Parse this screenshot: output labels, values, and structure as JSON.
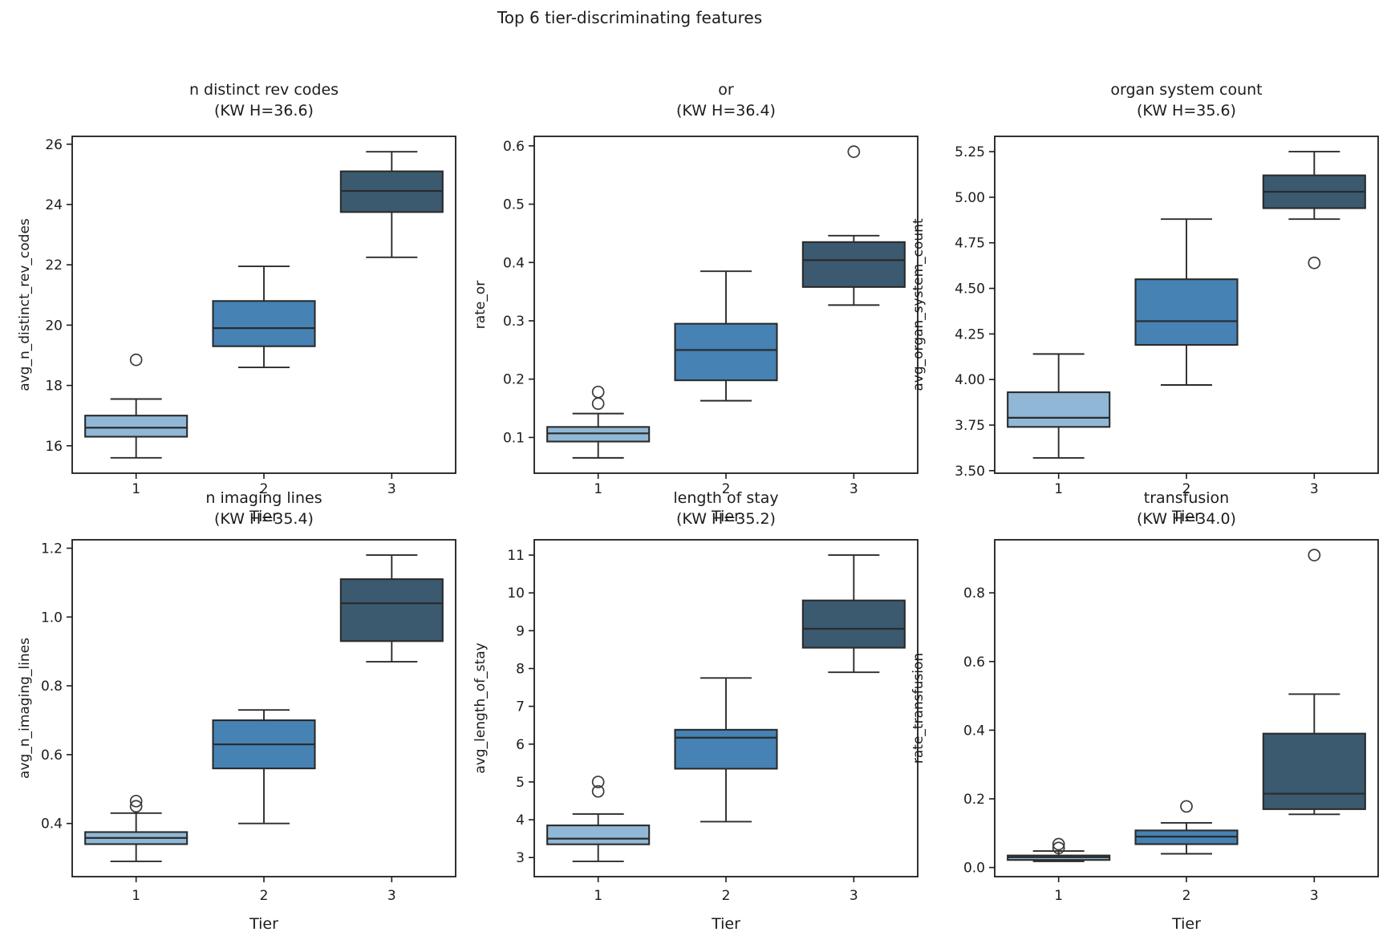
{
  "figure": {
    "suptitle": "Top 6 tier-discriminating features",
    "xlabel": "Tier",
    "palette": [
      "#90b8d6",
      "#4682b4",
      "#3b5a70"
    ],
    "edge_color": "#2b2b2b",
    "spine_color": "#1c1c1c",
    "background": "#ffffff"
  },
  "chart_data": [
    {
      "type": "box",
      "title": "n distinct rev codes",
      "subtitle": "(KW H=36.6)",
      "kw_h": 36.6,
      "ylabel": "avg_n_distinct_rev_codes",
      "categories": [
        "1",
        "2",
        "3"
      ],
      "ytick_values": [
        16,
        18,
        20,
        22,
        24,
        26
      ],
      "ytick_labels": [
        "16",
        "18",
        "20",
        "22",
        "24",
        "26"
      ],
      "ylim": [
        15.09,
        26.26
      ],
      "series": [
        {
          "tier": "1",
          "whislo": 15.6,
          "q1": 16.3,
          "med": 16.6,
          "q3": 17.0,
          "whishi": 17.55,
          "outliers": [
            18.85
          ]
        },
        {
          "tier": "2",
          "whislo": 18.6,
          "q1": 19.3,
          "med": 19.9,
          "q3": 20.8,
          "whishi": 21.95,
          "outliers": []
        },
        {
          "tier": "3",
          "whislo": 22.25,
          "q1": 23.75,
          "med": 24.45,
          "q3": 25.1,
          "whishi": 25.75,
          "outliers": []
        }
      ]
    },
    {
      "type": "box",
      "title": "or",
      "subtitle": "(KW H=36.4)",
      "kw_h": 36.4,
      "ylabel": "rate_or",
      "categories": [
        "1",
        "2",
        "3"
      ],
      "ytick_values": [
        0.1,
        0.2,
        0.3,
        0.4,
        0.5,
        0.6
      ],
      "ytick_labels": [
        "0.1",
        "0.2",
        "0.3",
        "0.4",
        "0.5",
        "0.6"
      ],
      "ylim": [
        0.0387,
        0.6163
      ],
      "series": [
        {
          "tier": "1",
          "whislo": 0.065,
          "q1": 0.093,
          "med": 0.107,
          "q3": 0.118,
          "whishi": 0.141,
          "outliers": [
            0.158,
            0.178
          ]
        },
        {
          "tier": "2",
          "whislo": 0.163,
          "q1": 0.198,
          "med": 0.25,
          "q3": 0.295,
          "whishi": 0.385,
          "outliers": []
        },
        {
          "tier": "3",
          "whislo": 0.327,
          "q1": 0.358,
          "med": 0.404,
          "q3": 0.435,
          "whishi": 0.446,
          "outliers": [
            0.59
          ]
        }
      ]
    },
    {
      "type": "box",
      "title": "organ system count",
      "subtitle": "(KW H=35.6)",
      "kw_h": 35.6,
      "ylabel": "avg_organ_system_count",
      "categories": [
        "1",
        "2",
        "3"
      ],
      "ytick_values": [
        3.5,
        3.75,
        4.0,
        4.25,
        4.5,
        4.75,
        5.0,
        5.25
      ],
      "ytick_labels": [
        "3.50",
        "3.75",
        "4.00",
        "4.25",
        "4.50",
        "4.75",
        "5.00",
        "5.25"
      ],
      "ylim": [
        3.486,
        5.334
      ],
      "series": [
        {
          "tier": "1",
          "whislo": 3.57,
          "q1": 3.74,
          "med": 3.79,
          "q3": 3.93,
          "whishi": 4.14,
          "outliers": []
        },
        {
          "tier": "2",
          "whislo": 3.97,
          "q1": 4.19,
          "med": 4.32,
          "q3": 4.55,
          "whishi": 4.88,
          "outliers": []
        },
        {
          "tier": "3",
          "whislo": 4.88,
          "q1": 4.94,
          "med": 5.03,
          "q3": 5.12,
          "whishi": 5.25,
          "outliers": [
            4.64
          ]
        }
      ]
    },
    {
      "type": "box",
      "title": "n imaging lines",
      "subtitle": "(KW H=35.4)",
      "kw_h": 35.4,
      "ylabel": "avg_n_imaging_lines",
      "categories": [
        "1",
        "2",
        "3"
      ],
      "ytick_values": [
        0.4,
        0.6,
        0.8,
        1.0,
        1.2
      ],
      "ytick_labels": [
        "0.4",
        "0.6",
        "0.8",
        "1.0",
        "1.2"
      ],
      "ylim": [
        0.2455,
        1.2245
      ],
      "series": [
        {
          "tier": "1",
          "whislo": 0.29,
          "q1": 0.34,
          "med": 0.358,
          "q3": 0.375,
          "whishi": 0.43,
          "outliers": [
            0.45,
            0.465
          ]
        },
        {
          "tier": "2",
          "whislo": 0.4,
          "q1": 0.56,
          "med": 0.63,
          "q3": 0.7,
          "whishi": 0.73,
          "outliers": []
        },
        {
          "tier": "3",
          "whislo": 0.87,
          "q1": 0.93,
          "med": 1.04,
          "q3": 1.11,
          "whishi": 1.18,
          "outliers": []
        }
      ]
    },
    {
      "type": "box",
      "title": "length of stay",
      "subtitle": "(KW H=35.2)",
      "kw_h": 35.2,
      "ylabel": "avg_length_of_stay",
      "categories": [
        "1",
        "2",
        "3"
      ],
      "ytick_values": [
        3,
        4,
        5,
        6,
        7,
        8,
        9,
        10,
        11
      ],
      "ytick_labels": [
        "3",
        "4",
        "5",
        "6",
        "7",
        "8",
        "9",
        "10",
        "11"
      ],
      "ylim": [
        2.495,
        11.405
      ],
      "series": [
        {
          "tier": "1",
          "whislo": 2.9,
          "q1": 3.35,
          "med": 3.5,
          "q3": 3.85,
          "whishi": 4.15,
          "outliers": [
            4.75,
            5.0
          ]
        },
        {
          "tier": "2",
          "whislo": 3.95,
          "q1": 5.35,
          "med": 6.17,
          "q3": 6.38,
          "whishi": 7.75,
          "outliers": []
        },
        {
          "tier": "3",
          "whislo": 7.9,
          "q1": 8.55,
          "med": 9.05,
          "q3": 9.8,
          "whishi": 11.0,
          "outliers": []
        }
      ]
    },
    {
      "type": "box",
      "title": "transfusion",
      "subtitle": "(KW H=34.0)",
      "kw_h": 34.0,
      "ylabel": "rate_transfusion",
      "categories": [
        "1",
        "2",
        "3"
      ],
      "ytick_values": [
        0.0,
        0.2,
        0.4,
        0.6,
        0.8
      ],
      "ytick_labels": [
        "0.0",
        "0.2",
        "0.4",
        "0.6",
        "0.8"
      ],
      "ylim": [
        -0.0266,
        0.9546
      ],
      "series": [
        {
          "tier": "1",
          "whislo": 0.018,
          "q1": 0.022,
          "med": 0.03,
          "q3": 0.035,
          "whishi": 0.048,
          "outliers": [
            0.057,
            0.068
          ]
        },
        {
          "tier": "2",
          "whislo": 0.04,
          "q1": 0.068,
          "med": 0.09,
          "q3": 0.108,
          "whishi": 0.13,
          "outliers": [
            0.178
          ]
        },
        {
          "tier": "3",
          "whislo": 0.155,
          "q1": 0.17,
          "med": 0.215,
          "q3": 0.39,
          "whishi": 0.505,
          "outliers": [
            0.91
          ]
        }
      ]
    }
  ]
}
